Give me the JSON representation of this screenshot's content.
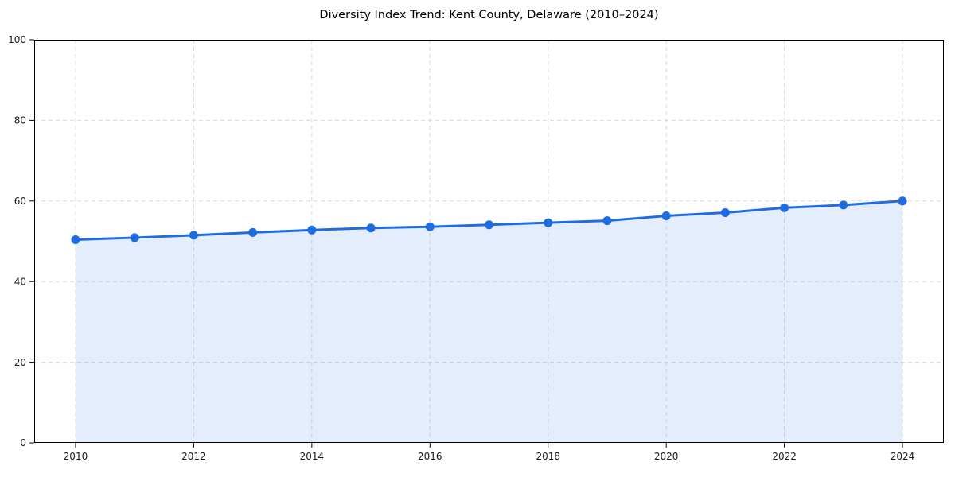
{
  "figure": {
    "background_color": "#ffffff"
  },
  "chart_data": {
    "type": "area",
    "title": "Diversity Index Trend: Kent County, Delaware (2010–2024)",
    "xlabel": "",
    "ylabel": "",
    "x": [
      2010,
      2011,
      2012,
      2013,
      2014,
      2015,
      2016,
      2017,
      2018,
      2019,
      2020,
      2021,
      2022,
      2023,
      2024
    ],
    "series": [
      {
        "name": "Diversity Index",
        "values": [
          50.4,
          50.9,
          51.5,
          52.2,
          52.8,
          53.3,
          53.6,
          54.1,
          54.6,
          55.1,
          56.3,
          57.1,
          58.3,
          59.0,
          60.0
        ]
      }
    ],
    "xlim": [
      2009.3,
      2024.7
    ],
    "ylim": [
      0,
      100
    ],
    "x_ticks": [
      2010,
      2012,
      2014,
      2016,
      2018,
      2020,
      2022,
      2024
    ],
    "y_ticks": [
      0,
      20,
      40,
      60,
      80,
      100
    ],
    "grid": "dashed-both-axes",
    "legend_position": "none",
    "marker": "circle",
    "colors": {
      "line": "#1e6ce0",
      "fill": "#1e6ce0",
      "fill_opacity": 0.12,
      "grid": "#d9d9d9",
      "spine": "#000000",
      "tick_text": "#1a1a1a",
      "background": "#ffffff"
    }
  }
}
